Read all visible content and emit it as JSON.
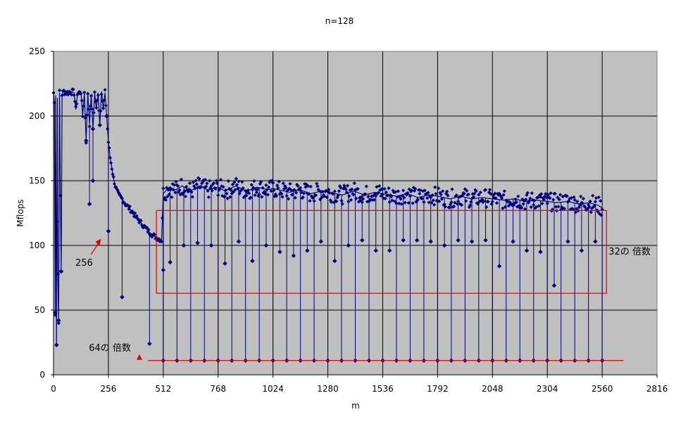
{
  "chart_data": {
    "type": "line",
    "title": "n=128",
    "xlabel": "m",
    "ylabel": "Mflops",
    "xlim": [
      0,
      2816
    ],
    "ylim": [
      0,
      250
    ],
    "x_ticks": [
      0,
      256,
      512,
      768,
      1024,
      1280,
      1536,
      1792,
      2048,
      2304,
      2560,
      2816
    ],
    "y_ticks": [
      0,
      50,
      100,
      150,
      200,
      250
    ],
    "grid": true,
    "legend": "none",
    "plot_background": "#c0c0c0",
    "series": [
      {
        "color": "#000080",
        "marker": "diamond",
        "points": [
          [
            0,
            218
          ],
          [
            4,
            210
          ],
          [
            8,
            48
          ],
          [
            10,
            216
          ],
          [
            14,
            23
          ],
          [
            18,
            214
          ],
          [
            20,
            78
          ],
          [
            24,
            42
          ],
          [
            28,
            218
          ],
          [
            32,
            138
          ],
          [
            36,
            80
          ],
          [
            40,
            217
          ],
          [
            48,
            219
          ],
          [
            64,
            218
          ],
          [
            80,
            219
          ],
          [
            96,
            218
          ],
          [
            104,
            205
          ],
          [
            112,
            217
          ],
          [
            128,
            219
          ],
          [
            136,
            200
          ],
          [
            144,
            218
          ],
          [
            152,
            181
          ],
          [
            160,
            218
          ],
          [
            168,
            194
          ],
          [
            176,
            217
          ],
          [
            184,
            190
          ],
          [
            192,
            218
          ],
          [
            200,
            205
          ],
          [
            208,
            218
          ],
          [
            216,
            193
          ],
          [
            224,
            219
          ],
          [
            232,
            205
          ],
          [
            240,
            218
          ],
          [
            248,
            200
          ],
          [
            256,
            180
          ],
          [
            264,
            168
          ],
          [
            272,
            160
          ],
          [
            280,
            152
          ],
          [
            288,
            146
          ],
          [
            296,
            142
          ],
          [
            304,
            139
          ],
          [
            320,
            136
          ],
          [
            336,
            132
          ],
          [
            352,
            129
          ],
          [
            368,
            126
          ],
          [
            384,
            122
          ],
          [
            400,
            119
          ],
          [
            416,
            116
          ],
          [
            432,
            113
          ],
          [
            448,
            110
          ],
          [
            464,
            108
          ],
          [
            480,
            106
          ],
          [
            504,
            104
          ],
          [
            512,
            140
          ],
          [
            540,
            145
          ],
          [
            570,
            143
          ],
          [
            600,
            146
          ],
          [
            640,
            142
          ],
          [
            680,
            146
          ],
          [
            720,
            143
          ],
          [
            768,
            145
          ],
          [
            800,
            142
          ],
          [
            850,
            146
          ],
          [
            900,
            142
          ],
          [
            950,
            145
          ],
          [
            1000,
            143
          ],
          [
            1024,
            144
          ],
          [
            1100,
            141
          ],
          [
            1150,
            143
          ],
          [
            1200,
            140
          ],
          [
            1250,
            142
          ],
          [
            1280,
            141
          ],
          [
            1350,
            139
          ],
          [
            1400,
            142
          ],
          [
            1450,
            139
          ],
          [
            1500,
            141
          ],
          [
            1536,
            140
          ],
          [
            1600,
            138
          ],
          [
            1650,
            140
          ],
          [
            1700,
            137
          ],
          [
            1750,
            139
          ],
          [
            1792,
            138
          ],
          [
            1850,
            136
          ],
          [
            1900,
            138
          ],
          [
            1950,
            136
          ],
          [
            2000,
            137
          ],
          [
            2048,
            136
          ],
          [
            2100,
            135
          ],
          [
            2150,
            136
          ],
          [
            2200,
            134
          ],
          [
            2250,
            135
          ],
          [
            2304,
            134
          ],
          [
            2350,
            133
          ],
          [
            2400,
            134
          ],
          [
            2450,
            132
          ],
          [
            2500,
            133
          ],
          [
            2540,
            131
          ],
          [
            2560,
            129
          ]
        ]
      }
    ],
    "dips": [
      [
        14,
        23
      ],
      [
        24,
        42
      ],
      [
        8,
        48
      ],
      [
        20,
        78
      ],
      [
        36,
        80
      ],
      [
        152,
        181
      ],
      [
        184,
        190
      ],
      [
        216,
        193
      ],
      [
        248,
        200
      ],
      [
        184,
        150
      ],
      [
        168,
        132
      ],
      [
        256,
        111
      ],
      [
        320,
        60
      ],
      [
        448,
        24
      ],
      [
        512,
        11
      ],
      [
        576,
        11
      ],
      [
        640,
        11
      ],
      [
        704,
        11
      ],
      [
        768,
        11
      ],
      [
        832,
        11
      ],
      [
        896,
        11
      ],
      [
        960,
        11
      ],
      [
        1024,
        11
      ],
      [
        1088,
        11
      ],
      [
        1152,
        11
      ],
      [
        1216,
        11
      ],
      [
        1280,
        11
      ],
      [
        1344,
        11
      ],
      [
        1408,
        11
      ],
      [
        1472,
        11
      ],
      [
        1536,
        11
      ],
      [
        1600,
        11
      ],
      [
        1664,
        11
      ],
      [
        1728,
        11
      ],
      [
        1792,
        11
      ],
      [
        1856,
        11
      ],
      [
        1920,
        11
      ],
      [
        1984,
        11
      ],
      [
        2048,
        11
      ],
      [
        2112,
        11
      ],
      [
        2176,
        11
      ],
      [
        2240,
        11
      ],
      [
        2304,
        11
      ],
      [
        2368,
        11
      ],
      [
        2432,
        11
      ],
      [
        2496,
        11
      ],
      [
        2560,
        11
      ],
      [
        512,
        81
      ],
      [
        544,
        87
      ],
      [
        608,
        100
      ],
      [
        672,
        102
      ],
      [
        736,
        100
      ],
      [
        800,
        86
      ],
      [
        864,
        103
      ],
      [
        928,
        88
      ],
      [
        992,
        100
      ],
      [
        1056,
        95
      ],
      [
        1120,
        92
      ],
      [
        1184,
        96
      ],
      [
        1248,
        103
      ],
      [
        1312,
        88
      ],
      [
        1376,
        100
      ],
      [
        1440,
        104
      ],
      [
        1504,
        96
      ],
      [
        1568,
        96
      ],
      [
        1632,
        104
      ],
      [
        1696,
        104
      ],
      [
        1760,
        103
      ],
      [
        1824,
        100
      ],
      [
        1888,
        104
      ],
      [
        1952,
        103
      ],
      [
        2016,
        104
      ],
      [
        2080,
        84
      ],
      [
        2144,
        103
      ],
      [
        2208,
        96
      ],
      [
        2272,
        95
      ],
      [
        2336,
        69
      ],
      [
        2400,
        103
      ],
      [
        2464,
        96
      ],
      [
        2528,
        103
      ]
    ],
    "annotations": [
      {
        "text": "256",
        "arrow_to": [
          228,
          105
        ]
      },
      {
        "text": "32の 倍数",
        "box": {
          "x0": 480,
          "x1": 2580,
          "y0": 63,
          "y1": 127
        }
      },
      {
        "text": "64の 倍数",
        "line": {
          "x0": 440,
          "x1": 2660,
          "y": 11
        }
      }
    ]
  }
}
